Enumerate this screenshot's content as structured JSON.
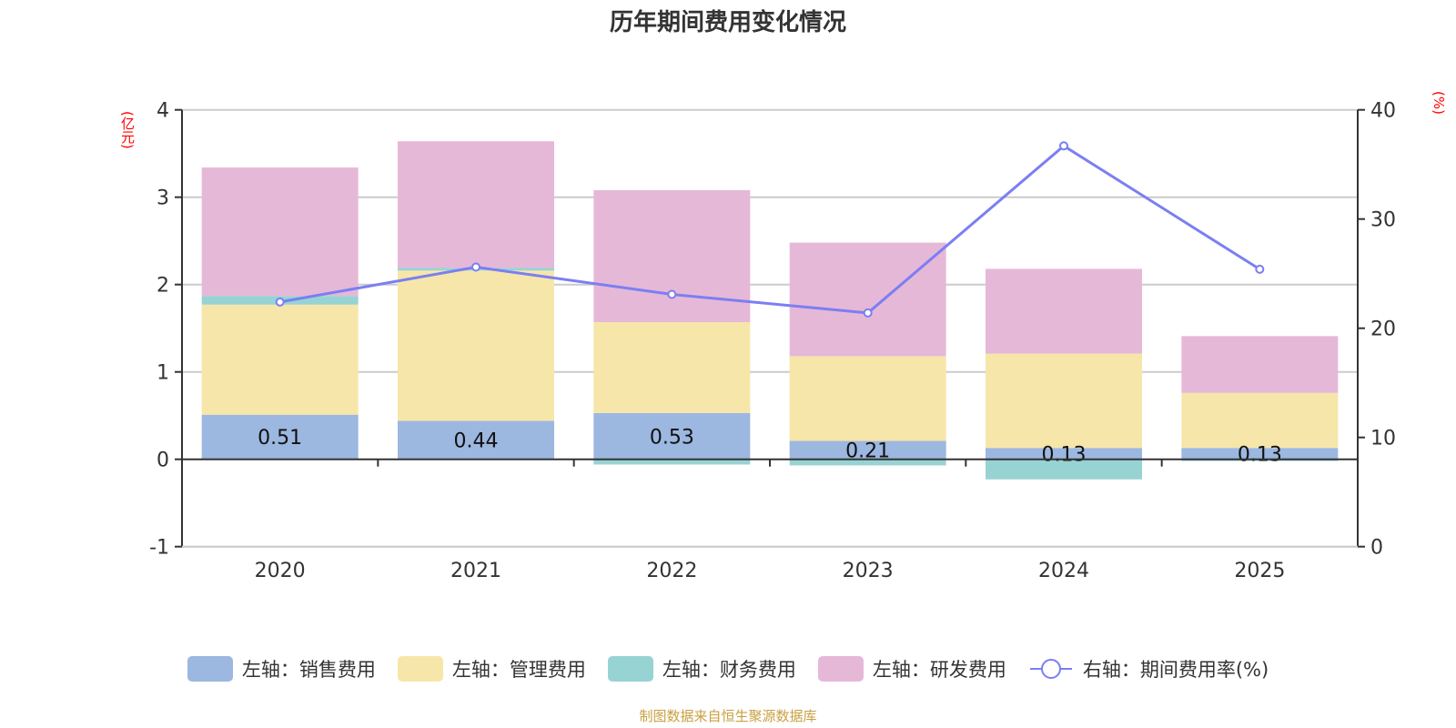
{
  "chart_data": {
    "type": "bar",
    "title": "历年期间费用变化情况",
    "categories": [
      "2020",
      "2021",
      "2022",
      "2023",
      "2024",
      "2025"
    ],
    "series": [
      {
        "name": "左轴：销售费用",
        "type": "bar",
        "axis": "left",
        "color": "#9cb7e0",
        "values": [
          0.51,
          0.44,
          0.53,
          0.21,
          0.13,
          0.13
        ],
        "labels": [
          "0.51",
          "0.44",
          "0.53",
          "0.21",
          "0.13",
          "0.13"
        ]
      },
      {
        "name": "左轴：管理费用",
        "type": "bar",
        "axis": "left",
        "color": "#f7e6a9",
        "values": [
          1.26,
          1.72,
          1.04,
          0.97,
          1.08,
          0.63
        ]
      },
      {
        "name": "左轴：财务费用",
        "type": "bar",
        "axis": "left",
        "color": "#98d3d3",
        "values": [
          0.1,
          0.03,
          -0.06,
          -0.07,
          -0.23,
          -0.02
        ]
      },
      {
        "name": "左轴：研发费用",
        "type": "bar",
        "axis": "left",
        "color": "#e6b8d8",
        "values": [
          1.47,
          1.45,
          1.51,
          1.3,
          0.97,
          0.65
        ]
      },
      {
        "name": "右轴：期间费用率(%)",
        "type": "line",
        "axis": "right",
        "color": "#7b7ff2",
        "values": [
          22.4,
          25.6,
          23.1,
          21.4,
          36.7,
          25.4
        ]
      }
    ],
    "y_left": {
      "label": "(亿元)",
      "ticks": [
        "-1",
        "0",
        "1",
        "2",
        "3",
        "4"
      ],
      "range": [
        -1,
        4
      ]
    },
    "y_right": {
      "label": "(%)",
      "ticks": [
        "0",
        "10",
        "20",
        "30",
        "40"
      ],
      "range": [
        0,
        40
      ]
    },
    "grid": true,
    "legend_position": "bottom"
  },
  "footnote": "制图数据来自恒生聚源数据库"
}
